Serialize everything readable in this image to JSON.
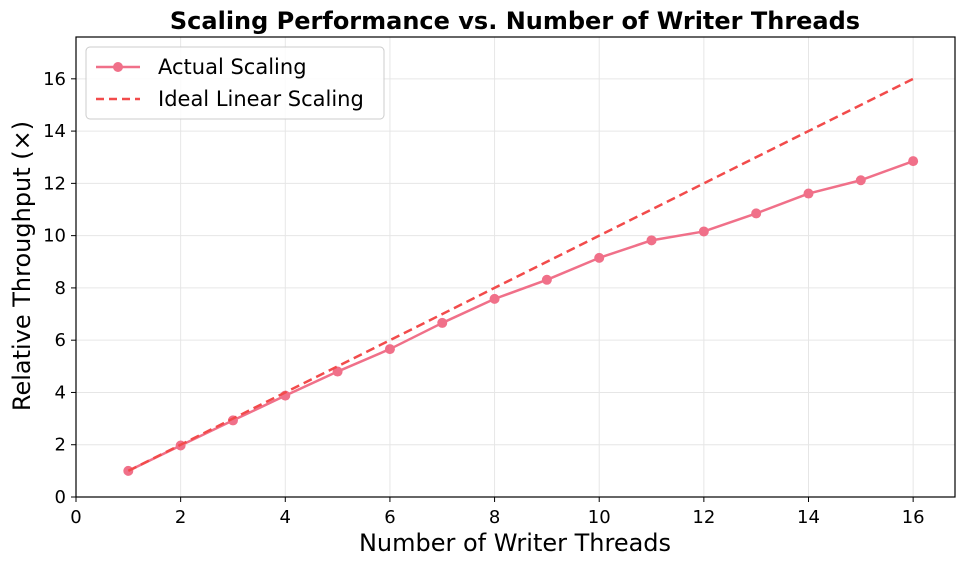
{
  "chart_data": {
    "type": "line",
    "title": "Scaling Performance vs. Number of Writer Threads",
    "xlabel": "Number of Writer Threads",
    "ylabel": "Relative Throughput (×)",
    "xlim": [
      0,
      16.8
    ],
    "ylim": [
      0,
      17.6
    ],
    "xticks": [
      0,
      2,
      4,
      6,
      8,
      10,
      12,
      14,
      16
    ],
    "yticks": [
      0,
      2,
      4,
      6,
      8,
      10,
      12,
      14,
      16
    ],
    "grid": true,
    "legend_position": "top-left",
    "series": [
      {
        "name": "Actual Scaling",
        "style": "solid-line-with-markers",
        "color": "#f07089",
        "x": [
          1,
          2,
          3,
          4,
          5,
          6,
          7,
          8,
          9,
          10,
          11,
          12,
          13,
          14,
          15,
          16
        ],
        "y": [
          1.0,
          1.97,
          2.93,
          3.88,
          4.8,
          5.66,
          6.66,
          7.58,
          8.31,
          9.15,
          9.82,
          10.16,
          10.85,
          11.61,
          12.12,
          12.85
        ]
      },
      {
        "name": "Ideal Linear Scaling",
        "style": "dashed-line",
        "color": "#f24b4b",
        "x": [
          1,
          16
        ],
        "y": [
          1,
          16
        ]
      }
    ]
  }
}
